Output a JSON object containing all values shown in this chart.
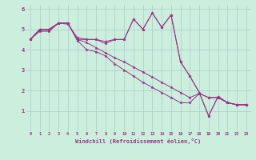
{
  "xlabel": "Windchill (Refroidissement éolien,°C)",
  "bg_color": "#cceedd",
  "line_color": "#993388",
  "xlim": [
    -0.5,
    23.5
  ],
  "ylim": [
    0,
    6.2
  ],
  "xticks": [
    0,
    1,
    2,
    3,
    4,
    5,
    6,
    7,
    8,
    9,
    10,
    11,
    12,
    13,
    14,
    15,
    16,
    17,
    18,
    19,
    20,
    21,
    22,
    23
  ],
  "yticks": [
    1,
    2,
    3,
    4,
    5,
    6
  ],
  "series": [
    [
      4.5,
      5.0,
      5.0,
      5.3,
      5.3,
      4.5,
      4.5,
      4.5,
      4.4,
      4.5,
      4.5,
      5.5,
      5.0,
      5.8,
      5.1,
      5.7,
      3.4,
      2.7,
      1.9,
      0.75,
      1.7,
      1.4,
      1.3,
      1.3
    ],
    [
      4.5,
      5.0,
      5.0,
      5.3,
      5.3,
      4.5,
      4.35,
      4.1,
      3.85,
      3.6,
      3.4,
      3.15,
      2.9,
      2.65,
      2.4,
      2.15,
      1.9,
      1.65,
      1.85,
      1.65,
      1.65,
      1.4,
      1.3,
      1.3
    ],
    [
      4.5,
      4.95,
      4.95,
      5.3,
      5.3,
      4.45,
      4.0,
      3.9,
      3.7,
      3.3,
      3.0,
      2.7,
      2.4,
      2.15,
      1.9,
      1.65,
      1.4,
      1.4,
      1.85,
      1.65,
      1.65,
      1.4,
      1.3,
      1.3
    ],
    [
      4.5,
      4.9,
      4.9,
      5.3,
      5.25,
      4.6,
      4.5,
      4.5,
      4.3,
      4.5,
      4.5,
      5.5,
      5.0,
      5.8,
      5.1,
      5.7,
      3.4,
      2.7,
      1.9,
      0.75,
      1.7,
      1.4,
      1.3,
      1.3
    ]
  ]
}
